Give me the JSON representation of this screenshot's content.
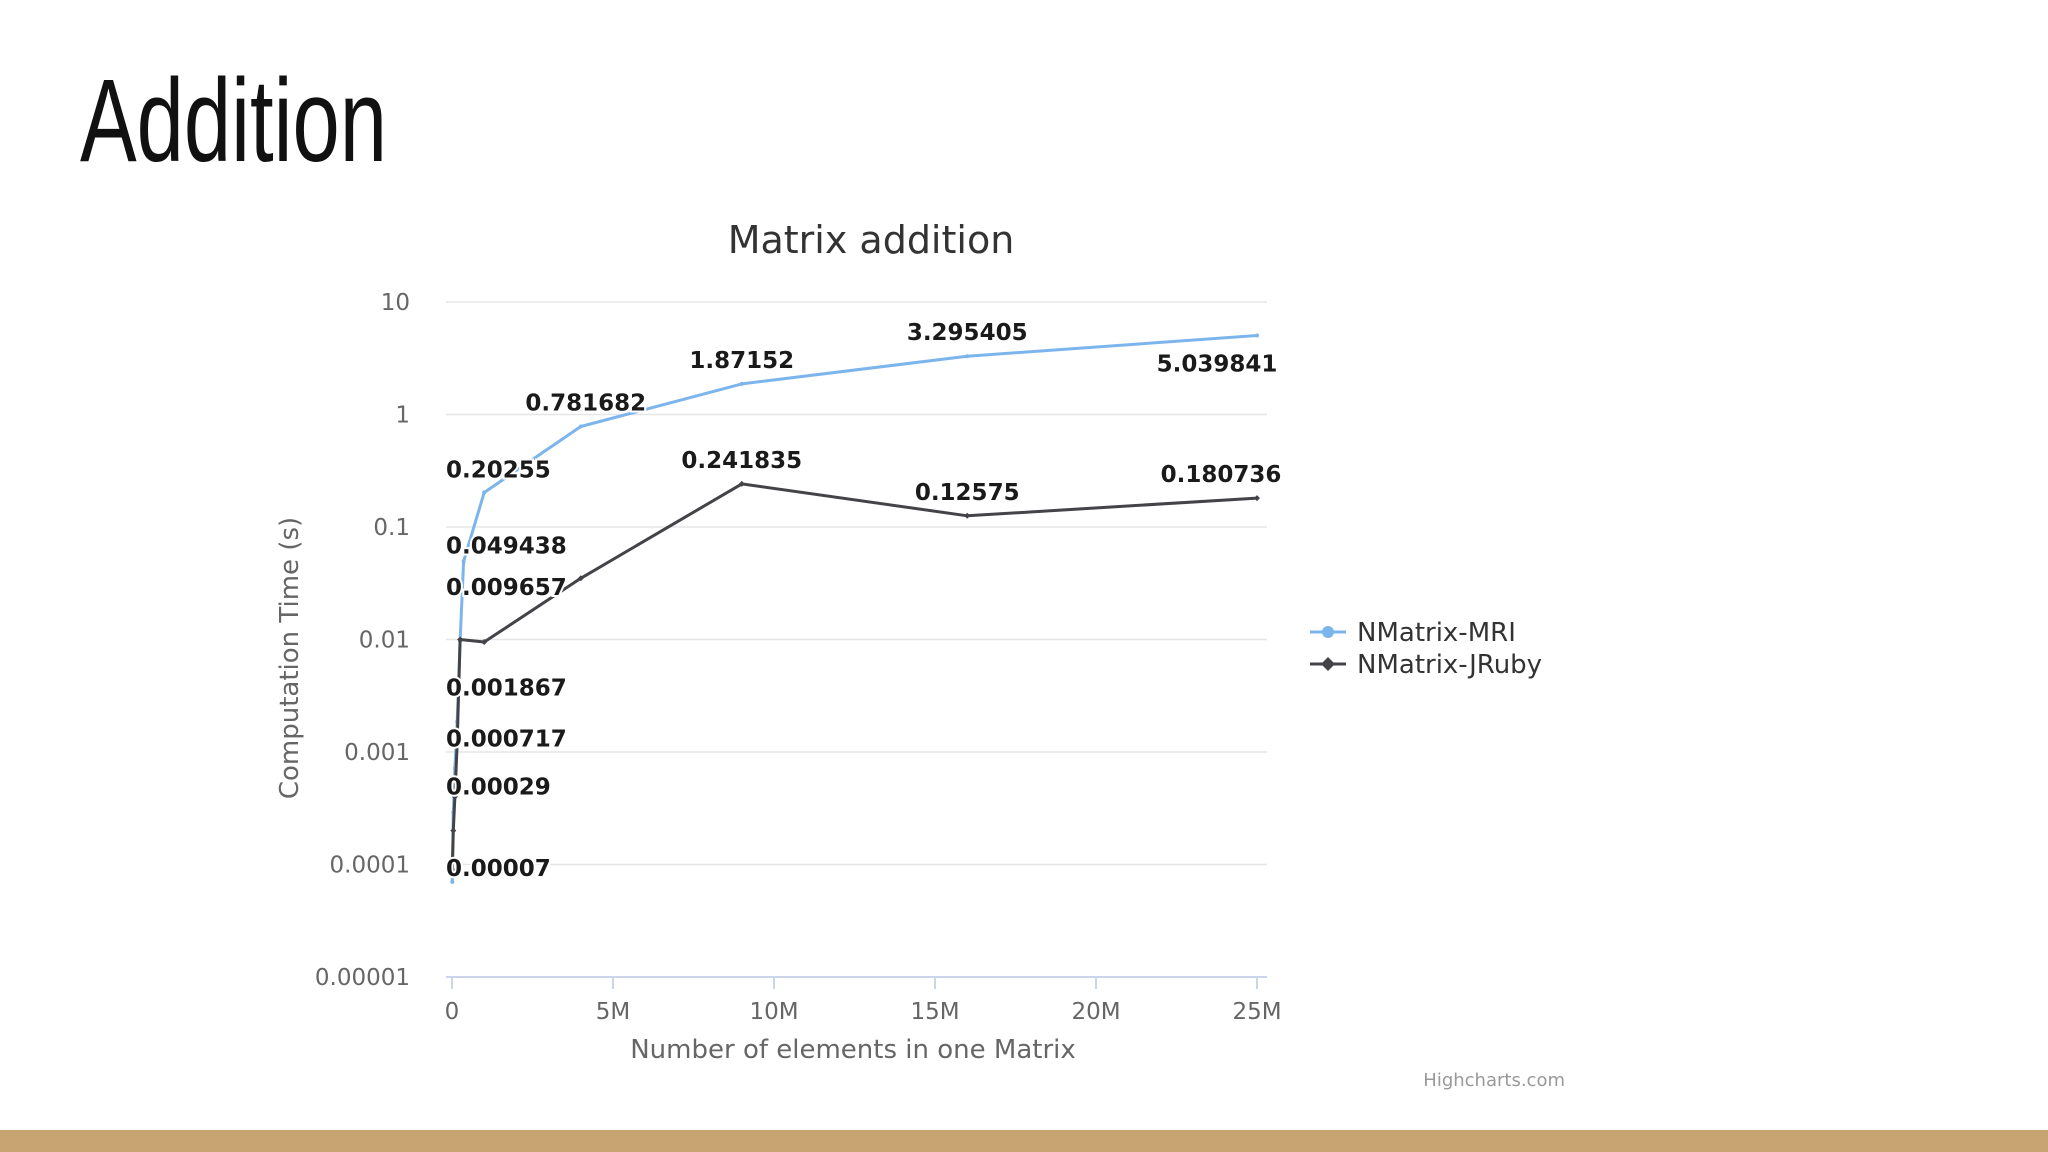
{
  "slide": {
    "title": "Addition"
  },
  "footer": {
    "bar_color": "#c9a473"
  },
  "chart_data": {
    "type": "line",
    "title": "Matrix addition",
    "xlabel": "Number of elements in one Matrix",
    "ylabel": "Computation Time (s)",
    "xlim": [
      0,
      25000000
    ],
    "ylim": [
      1e-05,
      10
    ],
    "y_scale": "log",
    "x_ticks": [
      0,
      5000000,
      10000000,
      15000000,
      20000000,
      25000000
    ],
    "x_tick_labels": [
      "0",
      "5M",
      "10M",
      "15M",
      "20M",
      "25M"
    ],
    "y_ticks": [
      1e-05,
      0.0001,
      0.001,
      0.01,
      0.1,
      1,
      10
    ],
    "y_tick_labels": [
      "0.00001",
      "0.0001",
      "0.001",
      "0.01",
      "0.1",
      "1",
      "10"
    ],
    "grid": true,
    "legend": "right",
    "credits": "Highcharts.com",
    "series": [
      {
        "name": "NMatrix-MRI",
        "color": "#7cb5ec",
        "marker": "circle",
        "points": [
          {
            "x": 10000,
            "y": 7e-05,
            "label": "0.00007"
          },
          {
            "x": 40000,
            "y": 0.00029,
            "label": "0.00029"
          },
          {
            "x": 90000,
            "y": 0.000717,
            "label": "0.000717"
          },
          {
            "x": 160000,
            "y": 0.001867,
            "label": "0.001867"
          },
          {
            "x": 250000,
            "y": 0.009657,
            "label": "0.009657"
          },
          {
            "x": 360000,
            "y": 0.049438,
            "label": "0.049438"
          },
          {
            "x": 1000000,
            "y": 0.20255,
            "label": "0.20255"
          },
          {
            "x": 4000000,
            "y": 0.781682,
            "label": "0.781682"
          },
          {
            "x": 9000000,
            "y": 1.87152,
            "label": "1.87152"
          },
          {
            "x": 16000000,
            "y": 3.295405,
            "label": "3.295405"
          },
          {
            "x": 25000000,
            "y": 5.039841,
            "label": "5.039841"
          }
        ]
      },
      {
        "name": "NMatrix-JRuby",
        "color": "#434348",
        "marker": "diamond",
        "points": [
          {
            "x": 10000,
            "y": 9e-05
          },
          {
            "x": 40000,
            "y": 0.0002
          },
          {
            "x": 90000,
            "y": 0.0004
          },
          {
            "x": 160000,
            "y": 0.0012
          },
          {
            "x": 250000,
            "y": 0.01
          },
          {
            "x": 1000000,
            "y": 0.0095
          },
          {
            "x": 4000000,
            "y": 0.035
          },
          {
            "x": 9000000,
            "y": 0.241835,
            "label": "0.241835"
          },
          {
            "x": 16000000,
            "y": 0.12575,
            "label": "0.12575"
          },
          {
            "x": 25000000,
            "y": 0.180736,
            "label": "0.180736"
          }
        ]
      }
    ]
  }
}
